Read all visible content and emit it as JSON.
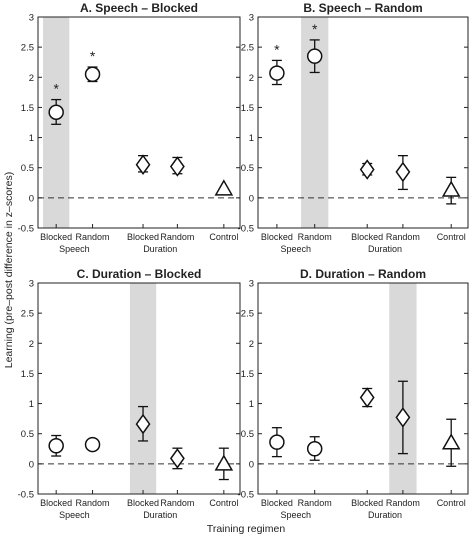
{
  "figure": {
    "ylabel": "Learning (pre–post difference in z–scores)",
    "xlabel": "Training regimen"
  },
  "chart_data": [
    {
      "type": "scatter",
      "title": "A. Speech – Blocked",
      "ylim": [
        -0.5,
        3
      ],
      "yticks": [
        -0.5,
        0,
        0.5,
        1,
        1.5,
        2,
        2.5,
        3
      ],
      "categories": [
        "Blocked",
        "Random",
        "Blocked",
        "Random",
        "Control"
      ],
      "groups": [
        "Speech",
        "Duration"
      ],
      "highlight": 0,
      "reference_line": 0,
      "points": [
        {
          "marker": "circle",
          "value": 1.42,
          "error_low": 1.22,
          "error_high": 1.63,
          "significant": true
        },
        {
          "marker": "circle",
          "value": 2.05,
          "error_low": 1.93,
          "error_high": 2.17,
          "significant": true
        },
        {
          "marker": "diamond",
          "value": 0.55,
          "error_low": 0.43,
          "error_high": 0.7,
          "significant": false
        },
        {
          "marker": "diamond",
          "value": 0.52,
          "error_low": 0.4,
          "error_high": 0.67,
          "significant": false
        },
        {
          "marker": "triangle",
          "value": 0.15,
          "error_low": null,
          "error_high": null,
          "significant": false
        }
      ]
    },
    {
      "type": "scatter",
      "title": "B. Speech – Random",
      "ylim": [
        -0.5,
        3
      ],
      "yticks": [
        -0.5,
        0,
        0.5,
        1,
        1.5,
        2,
        2.5,
        3
      ],
      "categories": [
        "Blocked",
        "Random",
        "Blocked",
        "Random",
        "Control"
      ],
      "groups": [
        "Speech",
        "Duration"
      ],
      "highlight": 1,
      "reference_line": 0,
      "points": [
        {
          "marker": "circle",
          "value": 2.07,
          "error_low": 1.88,
          "error_high": 2.28,
          "significant": true
        },
        {
          "marker": "circle",
          "value": 2.35,
          "error_low": 2.08,
          "error_high": 2.62,
          "significant": true
        },
        {
          "marker": "diamond",
          "value": 0.47,
          "error_low": 0.38,
          "error_high": 0.57,
          "significant": false
        },
        {
          "marker": "diamond",
          "value": 0.43,
          "error_low": 0.14,
          "error_high": 0.7,
          "significant": false
        },
        {
          "marker": "triangle",
          "value": 0.13,
          "error_low": -0.1,
          "error_high": 0.34,
          "significant": false
        }
      ]
    },
    {
      "type": "scatter",
      "title": "C. Duration – Blocked",
      "ylim": [
        -0.5,
        3
      ],
      "yticks": [
        -0.5,
        0,
        0.5,
        1,
        1.5,
        2,
        2.5,
        3
      ],
      "categories": [
        "Blocked",
        "Random",
        "Blocked",
        "Random",
        "Control"
      ],
      "groups": [
        "Speech",
        "Duration"
      ],
      "highlight": 2,
      "reference_line": 0,
      "points": [
        {
          "marker": "circle",
          "value": 0.3,
          "error_low": 0.13,
          "error_high": 0.47,
          "significant": false
        },
        {
          "marker": "circle",
          "value": 0.32,
          "error_low": null,
          "error_high": null,
          "significant": false
        },
        {
          "marker": "diamond",
          "value": 0.66,
          "error_low": 0.38,
          "error_high": 0.95,
          "significant": false
        },
        {
          "marker": "diamond",
          "value": 0.09,
          "error_low": -0.08,
          "error_high": 0.26,
          "significant": false
        },
        {
          "marker": "triangle",
          "value": 0.0,
          "error_low": -0.26,
          "error_high": 0.26,
          "significant": false
        }
      ]
    },
    {
      "type": "scatter",
      "title": "D. Duration – Random",
      "ylim": [
        -0.5,
        3
      ],
      "yticks": [
        -0.5,
        0,
        0.5,
        1,
        1.5,
        2,
        2.5,
        3
      ],
      "categories": [
        "Blocked",
        "Random",
        "Blocked",
        "Random",
        "Control"
      ],
      "groups": [
        "Speech",
        "Duration"
      ],
      "highlight": 3,
      "reference_line": 0,
      "points": [
        {
          "marker": "circle",
          "value": 0.36,
          "error_low": 0.12,
          "error_high": 0.6,
          "significant": false
        },
        {
          "marker": "circle",
          "value": 0.25,
          "error_low": 0.06,
          "error_high": 0.45,
          "significant": false
        },
        {
          "marker": "diamond",
          "value": 1.1,
          "error_low": 0.95,
          "error_high": 1.25,
          "significant": false
        },
        {
          "marker": "diamond",
          "value": 0.77,
          "error_low": 0.17,
          "error_high": 1.37,
          "significant": false
        },
        {
          "marker": "triangle",
          "value": 0.35,
          "error_low": -0.04,
          "error_high": 0.74,
          "significant": false
        }
      ]
    }
  ]
}
